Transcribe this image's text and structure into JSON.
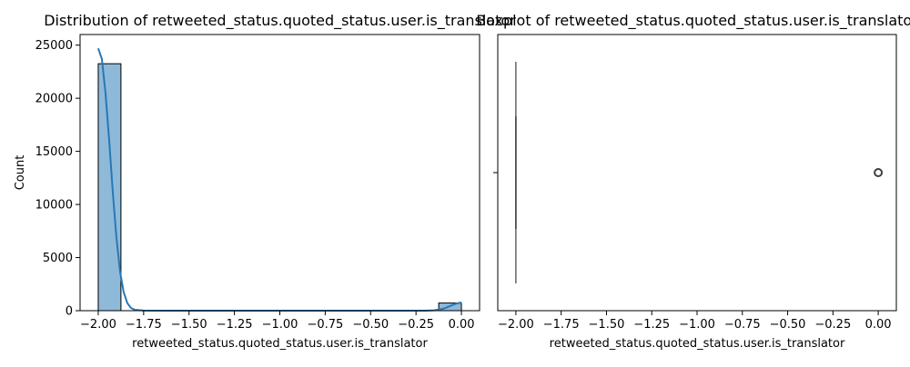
{
  "chart_data": [
    {
      "type": "histogram",
      "title": "Distribution of retweeted_status.quoted_status.user.is_translator",
      "xlabel": "retweeted_status.quoted_status.user.is_translator",
      "ylabel": "Count",
      "xlim": [
        -2.1,
        0.1
      ],
      "ylim": [
        0,
        26000
      ],
      "xticks": [
        -2.0,
        -1.75,
        -1.5,
        -1.25,
        -1.0,
        -0.75,
        -0.5,
        -0.25,
        0.0
      ],
      "xtick_labels": [
        "−2.00",
        "−1.75",
        "−1.50",
        "−1.25",
        "−1.00",
        "−0.75",
        "−0.50",
        "−0.25",
        "0.00"
      ],
      "yticks": [
        0,
        5000,
        10000,
        15000,
        20000,
        25000
      ],
      "ytick_labels": [
        "0",
        "5000",
        "10000",
        "15000",
        "20000",
        "25000"
      ],
      "bins": [
        {
          "x0": -2.0,
          "x1": -1.875,
          "count": 23250
        },
        {
          "x0": -1.875,
          "x1": -1.75,
          "count": 0
        },
        {
          "x0": -1.75,
          "x1": -1.625,
          "count": 0
        },
        {
          "x0": -1.625,
          "x1": -1.5,
          "count": 0
        },
        {
          "x0": -1.5,
          "x1": -1.375,
          "count": 0
        },
        {
          "x0": -1.375,
          "x1": -1.25,
          "count": 0
        },
        {
          "x0": -1.25,
          "x1": -1.125,
          "count": 0
        },
        {
          "x0": -1.125,
          "x1": -1.0,
          "count": 0
        },
        {
          "x0": -1.0,
          "x1": -0.875,
          "count": 0
        },
        {
          "x0": -0.875,
          "x1": -0.75,
          "count": 0
        },
        {
          "x0": -0.75,
          "x1": -0.625,
          "count": 0
        },
        {
          "x0": -0.625,
          "x1": -0.5,
          "count": 0
        },
        {
          "x0": -0.5,
          "x1": -0.375,
          "count": 0
        },
        {
          "x0": -0.375,
          "x1": -0.25,
          "count": 0
        },
        {
          "x0": -0.25,
          "x1": -0.125,
          "count": 0
        },
        {
          "x0": -0.125,
          "x1": 0.0,
          "count": 720
        }
      ],
      "kde": {
        "x": [
          -2.0,
          -1.98,
          -1.96,
          -1.94,
          -1.92,
          -1.9,
          -1.88,
          -1.86,
          -1.84,
          -1.82,
          -1.8,
          -1.75,
          -1.6,
          -1.4,
          -1.2,
          -1.0,
          -0.8,
          -0.6,
          -0.4,
          -0.2,
          -0.15,
          -0.1,
          -0.06,
          -0.03,
          0.0
        ],
        "y": [
          24700,
          23700,
          20500,
          16100,
          11200,
          6900,
          3700,
          1750,
          720,
          260,
          90,
          10,
          0,
          0,
          0,
          0,
          0,
          0,
          0,
          5,
          30,
          180,
          450,
          660,
          780
        ]
      },
      "colors": {
        "bar_fill": "#8fb9d9",
        "bar_edge": "#000000",
        "kde_line": "#2878b5"
      }
    },
    {
      "type": "boxplot",
      "title": "Boxplot of retweeted_status.quoted_status.user.is_translator",
      "xlabel": "retweeted_status.quoted_status.user.is_translator",
      "xlim": [
        -2.1,
        0.1
      ],
      "xticks": [
        -2.0,
        -1.75,
        -1.5,
        -1.25,
        -1.0,
        -0.75,
        -0.5,
        -0.25,
        0.0
      ],
      "xtick_labels": [
        "−2.00",
        "−1.75",
        "−1.50",
        "−1.25",
        "−1.00",
        "−0.75",
        "−0.50",
        "−0.25",
        "0.00"
      ],
      "box": {
        "q1": -2.0,
        "median": -2.0,
        "q3": -2.0,
        "whisker_low": -2.0,
        "whisker_high": -2.0
      },
      "outliers": [
        0.0
      ],
      "colors": {
        "box_line": "#3f3f3f",
        "outlier": "#3f3f3f"
      }
    }
  ]
}
